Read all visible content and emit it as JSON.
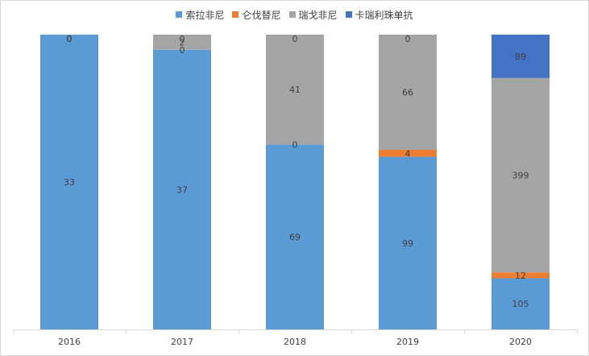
{
  "chart_data": {
    "type": "bar",
    "stacked": true,
    "normalized_to_100_percent": true,
    "categories": [
      "2016",
      "2017",
      "2018",
      "2019",
      "2020"
    ],
    "series": [
      {
        "name": "索拉非尼",
        "color": "#5b9bd5",
        "values": [
          33,
          37,
          69,
          99,
          105
        ],
        "labels": [
          "33",
          "37",
          "69",
          "99",
          "105"
        ]
      },
      {
        "name": "仑伐替尼",
        "color": "#ed7d31",
        "values": [
          0,
          0,
          0,
          4,
          12
        ],
        "labels": [
          "0",
          "0",
          "0",
          "4",
          "12"
        ]
      },
      {
        "name": "瑞戈非尼",
        "color": "#a5a5a5",
        "values": [
          0,
          2,
          41,
          66,
          399
        ],
        "labels": [
          "0",
          "2",
          "41",
          "66",
          "399"
        ]
      },
      {
        "name": "卡瑞利珠单抗",
        "color": "#4472c4",
        "values": [
          0,
          0,
          0,
          0,
          89
        ],
        "labels": [
          "0",
          "0",
          "0",
          "0",
          "89"
        ]
      }
    ],
    "legend_position": "top",
    "grid": false
  }
}
